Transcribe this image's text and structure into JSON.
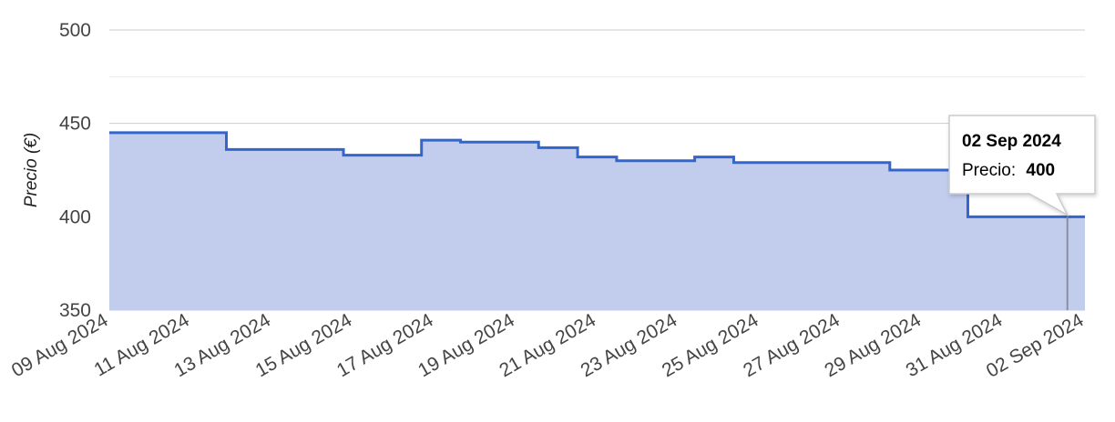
{
  "chart_data": {
    "type": "area",
    "step": true,
    "ylabel": "Precio (€)",
    "ylim": [
      350,
      500
    ],
    "yticks": [
      350,
      400,
      450,
      500
    ],
    "xlim": [
      "2024-08-09",
      "2024-09-03"
    ],
    "xticks": [
      "09 Aug 2024",
      "11 Aug 2024",
      "13 Aug 2024",
      "15 Aug 2024",
      "17 Aug 2024",
      "19 Aug 2024",
      "21 Aug 2024",
      "23 Aug 2024",
      "25 Aug 2024",
      "27 Aug 2024",
      "29 Aug 2024",
      "31 Aug 2024",
      "02 Sep 2024"
    ],
    "grid": true,
    "x": [
      "2024-08-09",
      "2024-08-10",
      "2024-08-12",
      "2024-08-15",
      "2024-08-17",
      "2024-08-18",
      "2024-08-20",
      "2024-08-21",
      "2024-08-22",
      "2024-08-24",
      "2024-08-25",
      "2024-08-29",
      "2024-08-31",
      "2024-09-02"
    ],
    "values": [
      445,
      445,
      436,
      433,
      441,
      440,
      437,
      432,
      430,
      432,
      429,
      425,
      400,
      400
    ],
    "colors": {
      "line": "#3366cc",
      "fill": "#c2cdee",
      "grid": "#cccccc"
    },
    "tooltip": {
      "date": "02 Sep 2024",
      "label": "Precio:",
      "value": "400"
    }
  }
}
